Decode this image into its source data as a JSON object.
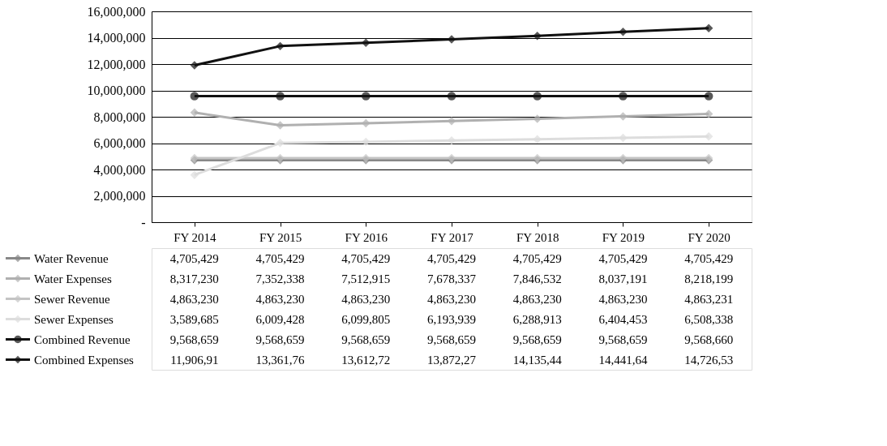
{
  "chart_data": {
    "type": "line",
    "categories": [
      "FY 2014",
      "FY 2015",
      "FY 2016",
      "FY 2017",
      "FY 2018",
      "FY 2019",
      "FY 2020"
    ],
    "ylim": [
      0,
      16000000
    ],
    "yticks": [
      {
        "value": 0,
        "label": "-"
      },
      {
        "value": 2000000,
        "label": "2,000,000"
      },
      {
        "value": 4000000,
        "label": "4,000,000"
      },
      {
        "value": 6000000,
        "label": "6,000,000"
      },
      {
        "value": 8000000,
        "label": "8,000,000"
      },
      {
        "value": 10000000,
        "label": "10,000,000"
      },
      {
        "value": 12000000,
        "label": "12,000,000"
      },
      {
        "value": 14000000,
        "label": "14,000,000"
      },
      {
        "value": 16000000,
        "label": "16,000,000"
      }
    ],
    "grid": "y",
    "legend": "bottom",
    "line_style": "solid",
    "series": [
      {
        "name": "Water Revenue",
        "color": "#888888",
        "marker": "diamond",
        "values": [
          4705429,
          4705429,
          4705429,
          4705429,
          4705429,
          4705429,
          4705429
        ],
        "value_labels": [
          "4,705,429",
          "4,705,429",
          "4,705,429",
          "4,705,429",
          "4,705,429",
          "4,705,429",
          "4,705,429"
        ]
      },
      {
        "name": "Water Expenses",
        "color": "#b0b0b0",
        "marker": "diamond",
        "values": [
          8317230,
          7352338,
          7512915,
          7678337,
          7846532,
          8037191,
          8218199
        ],
        "value_labels": [
          "8,317,230",
          "7,352,338",
          "7,512,915",
          "7,678,337",
          "7,846,532",
          "8,037,191",
          "8,218,199"
        ]
      },
      {
        "name": "Sewer Revenue",
        "color": "#c4c4c4",
        "marker": "diamond",
        "values": [
          4863230,
          4863230,
          4863230,
          4863230,
          4863230,
          4863230,
          4863231
        ],
        "value_labels": [
          "4,863,230",
          "4,863,230",
          "4,863,230",
          "4,863,230",
          "4,863,230",
          "4,863,230",
          "4,863,231"
        ]
      },
      {
        "name": "Sewer Expenses",
        "color": "#dddddd",
        "marker": "diamond",
        "values": [
          3589685,
          6009428,
          6099805,
          6193939,
          6288913,
          6404453,
          6508338
        ],
        "value_labels": [
          "3,589,685",
          "6,009,428",
          "6,099,805",
          "6,193,939",
          "6,288,913",
          "6,404,453",
          "6,508,338"
        ]
      },
      {
        "name": "Combined Revenue",
        "color": "#111111",
        "marker": "circle",
        "values": [
          9568659,
          9568659,
          9568659,
          9568659,
          9568659,
          9568659,
          9568660
        ],
        "value_labels": [
          "9,568,659",
          "9,568,659",
          "9,568,659",
          "9,568,659",
          "9,568,659",
          "9,568,659",
          "9,568,660"
        ]
      },
      {
        "name": "Combined Expenses",
        "color": "#111111",
        "marker": "diamond",
        "values": [
          11906915,
          13361766,
          13612720,
          13872276,
          14135445,
          14441644,
          14726537
        ],
        "value_labels": [
          "11,906,91",
          "13,361,76",
          "13,612,72",
          "13,872,27",
          "14,135,44",
          "14,441,64",
          "14,726,53"
        ]
      }
    ]
  }
}
